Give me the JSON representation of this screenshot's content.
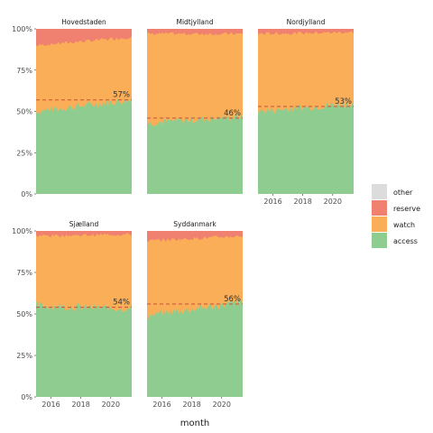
{
  "chart_data": {
    "type": "area",
    "stacked": true,
    "normalized": true,
    "xlabel": "month",
    "ylabel": "",
    "x_tick_labels": [
      "2016",
      "2018",
      "2020"
    ],
    "y_tick_labels": [
      "0%",
      "25%",
      "50%",
      "75%",
      "100%"
    ],
    "ylim": [
      0,
      1
    ],
    "legend": {
      "position": "right",
      "entries": [
        {
          "key": "other",
          "label": "other",
          "color": "#dcdcdc"
        },
        {
          "key": "reserve",
          "label": "reserve",
          "color": "#f08070"
        },
        {
          "key": "watch",
          "label": "watch",
          "color": "#f9ae57"
        },
        {
          "key": "access",
          "label": "access",
          "color": "#8fcc8f"
        }
      ]
    },
    "reference_line": {
      "style": "dashed",
      "color": "#c9503f"
    },
    "facets": [
      {
        "name": "Hovedstaden",
        "mean_access_label": "57%",
        "mean_access": 0.57,
        "access_start": 0.5,
        "access_end": 0.57,
        "watch_total_start": 0.9,
        "watch_total_end": 0.95,
        "reserve_total": 1.0
      },
      {
        "name": "Midtjylland",
        "mean_access_label": "46%",
        "mean_access": 0.46,
        "access_start": 0.43,
        "access_end": 0.47,
        "watch_total_start": 0.97,
        "watch_total_end": 0.97,
        "reserve_total": 1.0
      },
      {
        "name": "Nordjylland",
        "mean_access_label": "53%",
        "mean_access": 0.53,
        "access_start": 0.5,
        "access_end": 0.55,
        "watch_total_start": 0.97,
        "watch_total_end": 0.98,
        "reserve_total": 1.0
      },
      {
        "name": "Sjælland",
        "mean_access_label": "54%",
        "mean_access": 0.54,
        "access_start": 0.55,
        "access_end": 0.53,
        "watch_total_start": 0.97,
        "watch_total_end": 0.98,
        "reserve_total": 1.0
      },
      {
        "name": "Syddanmark",
        "mean_access_label": "56%",
        "mean_access": 0.56,
        "access_start": 0.49,
        "access_end": 0.57,
        "watch_total_start": 0.94,
        "watch_total_end": 0.97,
        "reserve_total": 1.0
      }
    ]
  }
}
